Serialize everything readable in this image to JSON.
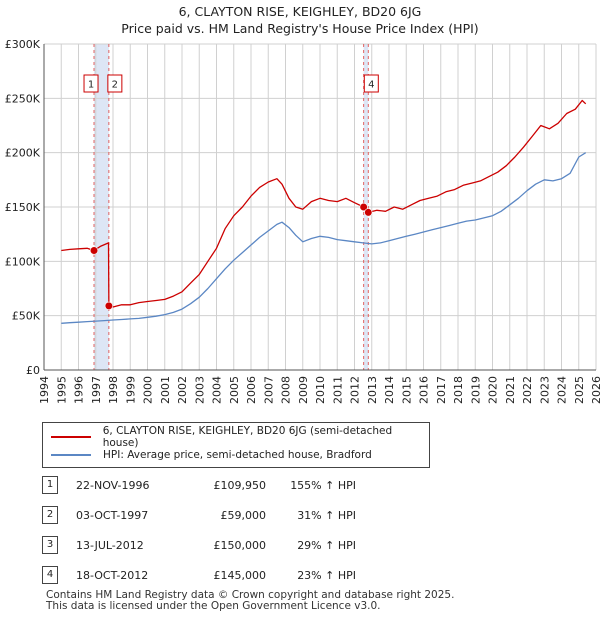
{
  "header": {
    "title": "6, CLAYTON RISE, KEIGHLEY, BD20 6JG",
    "subtitle": "Price paid vs. HM Land Registry's House Price Index (HPI)"
  },
  "colors": {
    "property": "#cc0000",
    "hpi": "#5b87c4",
    "band": "#dde6f5",
    "grid": "#d0d0d0"
  },
  "chart_data": {
    "type": "line",
    "title": "6, CLAYTON RISE, KEIGHLEY, BD20 6JG",
    "subtitle": "Price paid vs. HM Land Registry's House Price Index (HPI)",
    "xlim": [
      1994,
      2026
    ],
    "ylim": [
      0,
      300000
    ],
    "x_ticks": [
      1994,
      1995,
      1996,
      1997,
      1998,
      1999,
      2000,
      2001,
      2002,
      2003,
      2004,
      2005,
      2006,
      2007,
      2008,
      2009,
      2010,
      2011,
      2012,
      2013,
      2014,
      2015,
      2016,
      2017,
      2018,
      2019,
      2020,
      2021,
      2022,
      2023,
      2024,
      2025,
      2026
    ],
    "y_ticks": [
      0,
      50000,
      100000,
      150000,
      200000,
      250000,
      300000
    ],
    "y_tick_labels": [
      "£0",
      "£50K",
      "£100K",
      "£150K",
      "£200K",
      "£250K",
      "£300K"
    ],
    "grid": true,
    "series": [
      {
        "name": "6, CLAYTON RISE, KEIGHLEY, BD20 6JG (semi-detached house)",
        "color": "#cc0000",
        "x": [
          1995.0,
          1995.5,
          1996.0,
          1996.5,
          1996.9,
          1997.3,
          1997.74,
          1997.76,
          1998.0,
          1998.5,
          1999.0,
          1999.5,
          2000.0,
          2000.5,
          2001.0,
          2001.5,
          2002.0,
          2002.5,
          2003.0,
          2003.5,
          2004.0,
          2004.5,
          2005.0,
          2005.5,
          2006.0,
          2006.5,
          2007.0,
          2007.5,
          2007.8,
          2008.2,
          2008.6,
          2009.0,
          2009.5,
          2010.0,
          2010.5,
          2011.0,
          2011.5,
          2012.0,
          2012.53,
          2012.8,
          2013.3,
          2013.8,
          2014.3,
          2014.8,
          2015.3,
          2015.8,
          2016.3,
          2016.8,
          2017.3,
          2017.8,
          2018.3,
          2018.8,
          2019.3,
          2019.8,
          2020.3,
          2020.8,
          2021.3,
          2021.8,
          2022.3,
          2022.8,
          2023.3,
          2023.8,
          2024.3,
          2024.8,
          2025.2,
          2025.4
        ],
        "y": [
          110000,
          111000,
          111500,
          112000,
          109950,
          114000,
          117000,
          59000,
          58000,
          60000,
          60000,
          62000,
          63000,
          64000,
          65000,
          68000,
          72000,
          80000,
          88000,
          100000,
          112000,
          130000,
          142000,
          150000,
          160000,
          168000,
          173000,
          176000,
          171000,
          158000,
          150000,
          148000,
          155000,
          158000,
          156000,
          155000,
          158000,
          154000,
          150000,
          145000,
          147000,
          146000,
          150000,
          148000,
          152000,
          156000,
          158000,
          160000,
          164000,
          166000,
          170000,
          172000,
          174000,
          178000,
          182000,
          188000,
          196000,
          205000,
          215000,
          225000,
          222000,
          227000,
          236000,
          240000,
          248000,
          245000
        ]
      },
      {
        "name": "HPI: Average price, semi-detached house, Bradford",
        "color": "#5b87c4",
        "x": [
          1995.0,
          1995.5,
          1996.0,
          1996.5,
          1997.0,
          1997.5,
          1998.0,
          1998.5,
          1999.0,
          1999.5,
          2000.0,
          2000.5,
          2001.0,
          2001.5,
          2002.0,
          2002.5,
          2003.0,
          2003.5,
          2004.0,
          2004.5,
          2005.0,
          2005.5,
          2006.0,
          2006.5,
          2007.0,
          2007.5,
          2007.8,
          2008.2,
          2008.6,
          2009.0,
          2009.5,
          2010.0,
          2010.5,
          2011.0,
          2011.5,
          2012.0,
          2012.5,
          2013.0,
          2013.5,
          2014.0,
          2014.5,
          2015.0,
          2015.5,
          2016.0,
          2016.5,
          2017.0,
          2017.5,
          2018.0,
          2018.5,
          2019.0,
          2019.5,
          2020.0,
          2020.5,
          2021.0,
          2021.5,
          2022.0,
          2022.5,
          2023.0,
          2023.5,
          2024.0,
          2024.5,
          2025.0,
          2025.4
        ],
        "y": [
          43000,
          43500,
          44000,
          44500,
          45000,
          45500,
          46000,
          46500,
          47000,
          47500,
          48500,
          49500,
          51000,
          53000,
          56000,
          61000,
          67000,
          75000,
          84000,
          93000,
          101000,
          108000,
          115000,
          122000,
          128000,
          134000,
          136000,
          131000,
          124000,
          118000,
          121000,
          123000,
          122000,
          120000,
          119000,
          118000,
          117000,
          116000,
          117000,
          119000,
          121000,
          123000,
          125000,
          127000,
          129000,
          131000,
          133000,
          135000,
          137000,
          138000,
          140000,
          142000,
          146000,
          152000,
          158000,
          165000,
          171000,
          175000,
          174000,
          176000,
          181000,
          196000,
          200000
        ]
      }
    ],
    "sales": [
      {
        "label": "1",
        "x": 1996.9,
        "y": 109950
      },
      {
        "label": "2",
        "x": 1997.76,
        "y": 59000
      },
      {
        "label": "3",
        "x": 2012.53,
        "y": 150000
      },
      {
        "label": "4",
        "x": 2012.8,
        "y": 145000
      }
    ],
    "bands": [
      [
        1996.9,
        1997.76
      ],
      [
        2012.53,
        2012.8
      ]
    ],
    "top_markers": [
      {
        "label": "1",
        "x": 1996.9
      },
      {
        "label": "2",
        "x": 1997.76
      },
      {
        "label": "4",
        "x": 2012.8
      }
    ]
  },
  "legend": {
    "property_label": "6, CLAYTON RISE, KEIGHLEY, BD20 6JG (semi-detached house)",
    "hpi_label": "HPI: Average price, semi-detached house, Bradford"
  },
  "transactions": [
    {
      "num": "1",
      "date": "22-NOV-1996",
      "price": "£109,950",
      "hpi": "155% ↑ HPI"
    },
    {
      "num": "2",
      "date": "03-OCT-1997",
      "price": "£59,000",
      "hpi": "31% ↑ HPI"
    },
    {
      "num": "3",
      "date": "13-JUL-2012",
      "price": "£150,000",
      "hpi": "29% ↑ HPI"
    },
    {
      "num": "4",
      "date": "18-OCT-2012",
      "price": "£145,000",
      "hpi": "23% ↑ HPI"
    }
  ],
  "footer": {
    "line1": "Contains HM Land Registry data © Crown copyright and database right 2025.",
    "line2": "This data is licensed under the Open Government Licence v3.0."
  }
}
